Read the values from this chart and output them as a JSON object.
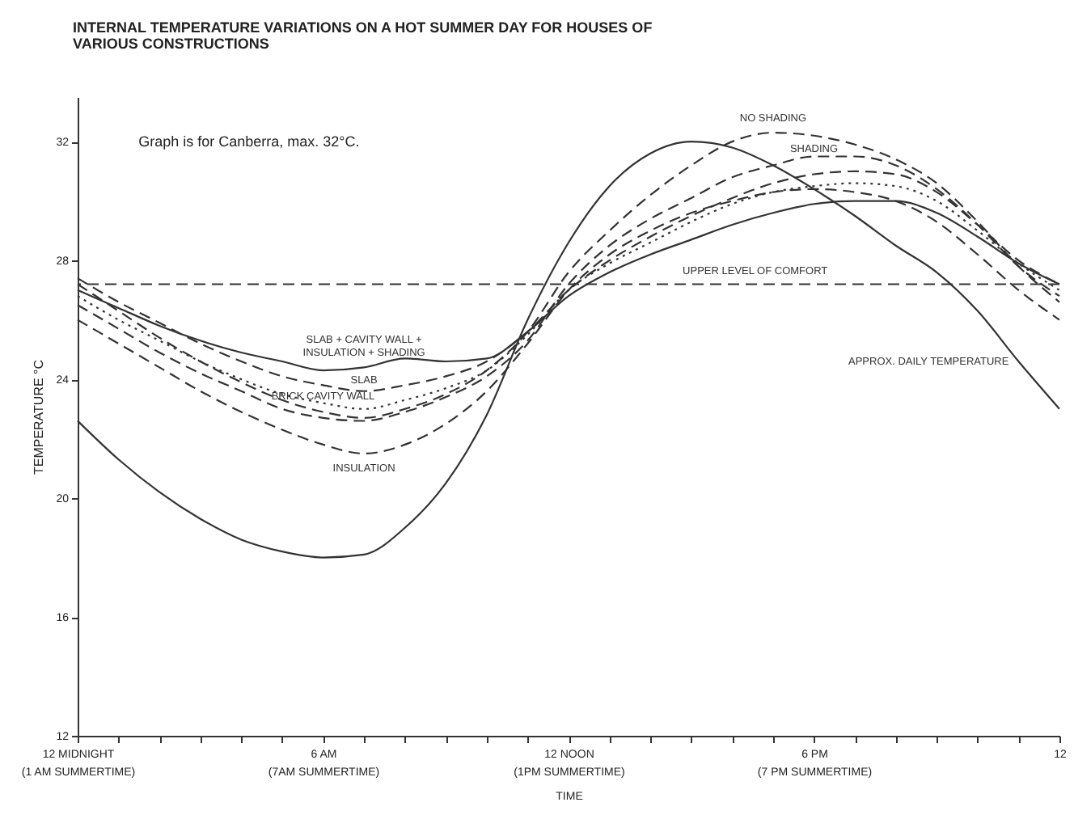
{
  "chart_data": {
    "type": "line",
    "title": "INTERNAL TEMPERATURE VARIATIONS ON A HOT SUMMER DAY FOR HOUSES OF VARIOUS CONSTRUCTIONS",
    "xlabel": "TIME",
    "ylabel": "TEMPERATURE °C",
    "categories": [
      "12 MIDNIGHT\n(1 AM SUMMERTIME)",
      null,
      null,
      null,
      null,
      null,
      "6 AM\n(7AM SUMMERTIME)",
      null,
      null,
      null,
      null,
      null,
      "12 NOON\n(1PM SUMMERTIME)",
      null,
      null,
      null,
      null,
      null,
      "6 PM\n(7 PM SUMMERTIME)",
      null,
      null,
      null,
      null,
      null,
      "12"
    ],
    "ylim": [
      12,
      33.5
    ],
    "yticks": [
      12,
      16,
      20,
      24,
      28,
      32
    ],
    "grid": false,
    "marker": "none",
    "series": [
      {
        "name": "APPROX. DAILY TEMPERATURE",
        "color": "#333333",
        "line_style": "solid",
        "values": [
          22.6,
          21.3,
          20.2,
          19.3,
          18.6,
          18.2,
          18.0,
          18.1,
          19.0,
          20.5,
          22.8,
          26.0,
          28.6,
          30.5,
          31.6,
          32.0,
          31.8,
          31.2,
          30.4,
          29.5,
          28.5,
          27.6,
          26.3,
          24.6,
          23.0
        ]
      },
      {
        "name": "SLAB + CAVITY WALL + INSULATION + SHADING",
        "color": "#333333",
        "line_style": "solid",
        "values": [
          27.0,
          26.4,
          25.8,
          25.3,
          24.9,
          24.6,
          24.3,
          24.4,
          24.7,
          24.6,
          24.7,
          25.6,
          26.8,
          27.6,
          28.2,
          28.7,
          29.2,
          29.6,
          29.9,
          30.0,
          30.0,
          29.6,
          28.8,
          27.9,
          27.2
        ]
      },
      {
        "name": "SLAB",
        "color": "#333333",
        "line_style": "dashed",
        "values": [
          27.4,
          26.6,
          25.9,
          25.2,
          24.6,
          24.1,
          23.8,
          23.6,
          23.8,
          24.1,
          24.6,
          25.6,
          27.0,
          28.0,
          28.8,
          29.5,
          30.1,
          30.6,
          30.9,
          31.0,
          30.9,
          30.3,
          29.2,
          28.0,
          27.2
        ]
      },
      {
        "name": "BRICK CAVITY WALL",
        "color": "#333333",
        "line_style": "dotted",
        "values": [
          26.8,
          26.0,
          25.3,
          24.6,
          24.0,
          23.5,
          23.2,
          23.0,
          23.3,
          23.7,
          24.3,
          25.5,
          27.0,
          27.9,
          28.6,
          29.3,
          29.9,
          30.3,
          30.5,
          30.6,
          30.5,
          30.0,
          29.0,
          27.9,
          27.0
        ]
      },
      {
        "name": "SHADING",
        "color": "#333333",
        "line_style": "dashed",
        "values": [
          26.5,
          25.7,
          24.9,
          24.2,
          23.6,
          23.0,
          22.7,
          22.6,
          22.9,
          23.4,
          24.1,
          25.3,
          27.2,
          28.5,
          29.4,
          30.1,
          30.8,
          31.2,
          31.5,
          31.5,
          31.2,
          30.4,
          29.2,
          27.8,
          26.8
        ]
      },
      {
        "name": "NO SHADING",
        "color": "#333333",
        "line_style": "dashed",
        "values": [
          27.2,
          26.3,
          25.4,
          24.6,
          23.9,
          23.3,
          22.9,
          22.7,
          23.0,
          23.5,
          24.3,
          25.6,
          27.6,
          29.0,
          30.2,
          31.2,
          32.0,
          32.3,
          32.2,
          31.9,
          31.4,
          30.6,
          29.3,
          27.8,
          26.6
        ]
      },
      {
        "name": "INSULATION",
        "color": "#333333",
        "line_style": "dashed",
        "values": [
          26.0,
          25.2,
          24.4,
          23.6,
          22.9,
          22.3,
          21.8,
          21.5,
          21.8,
          22.5,
          23.6,
          25.2,
          27.0,
          28.2,
          29.0,
          29.6,
          30.0,
          30.3,
          30.4,
          30.3,
          30.0,
          29.3,
          28.2,
          27.0,
          26.0
        ]
      }
    ],
    "ref_lines": [
      {
        "axis": "y",
        "value": 27.2,
        "label": "UPPER LEVEL OF COMFORT",
        "color": "#333333",
        "line_style": "dashed"
      }
    ],
    "annotations": [
      "Graph is for Canberra, max. 32°C."
    ]
  }
}
